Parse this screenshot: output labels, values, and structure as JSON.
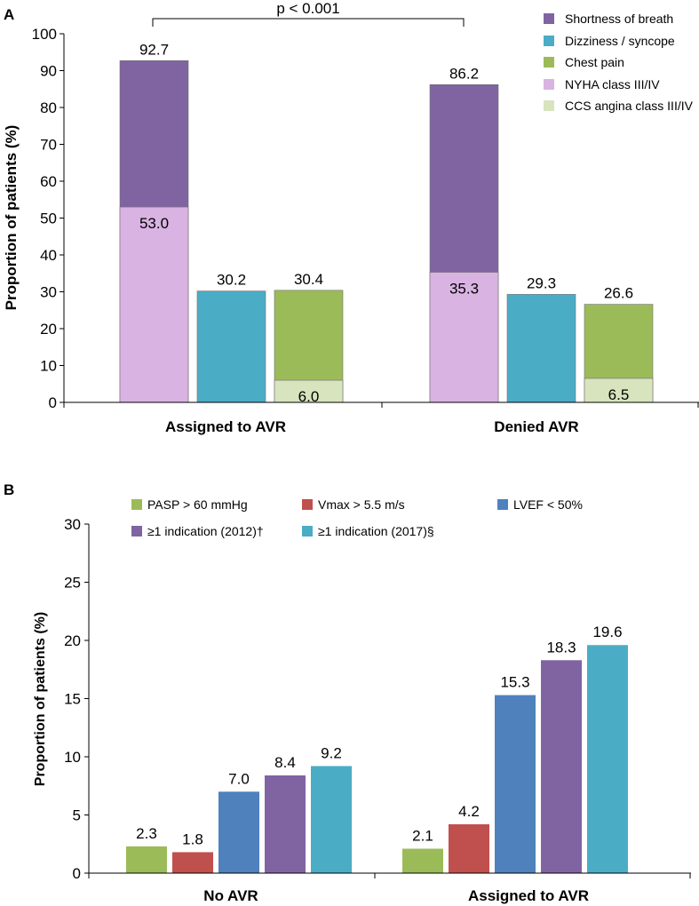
{
  "chart_data": [
    {
      "panel_label": "A",
      "type": "bar",
      "stacked": true,
      "ylabel": "Proportion of patients (%)",
      "ylim": [
        0,
        100
      ],
      "yticks": [
        0,
        10,
        20,
        30,
        40,
        50,
        60,
        70,
        80,
        90,
        100
      ],
      "categories": [
        "Assigned to AVR",
        "Denied AVR"
      ],
      "annotation": "p < 0.001",
      "legend_position": "top-right",
      "legend": [
        {
          "label": "Shortness of breath",
          "color": "#8064A2"
        },
        {
          "label": "Dizziness / syncope",
          "color": "#4BACC6"
        },
        {
          "label": "Chest pain",
          "color": "#9BBB59"
        },
        {
          "label": "NYHA class III/IV",
          "color": "#D9B3E2"
        },
        {
          "label": "CCS angina class III/IV",
          "color": "#D7E4BD"
        }
      ],
      "groups": [
        {
          "category": "Assigned to AVR",
          "bars": [
            {
              "total": 92.7,
              "total_label": "92.7",
              "color": "#8064A2",
              "sub": 53.0,
              "sub_label": "53.0",
              "sub_color": "#D9B3E2"
            },
            {
              "total": 30.2,
              "total_label": "30.2",
              "color": "#4BACC6"
            },
            {
              "total": 30.4,
              "total_label": "30.4",
              "color": "#9BBB59",
              "sub": 6.0,
              "sub_label": "6.0",
              "sub_color": "#D7E4BD"
            }
          ]
        },
        {
          "category": "Denied AVR",
          "bars": [
            {
              "total": 86.2,
              "total_label": "86.2",
              "color": "#8064A2",
              "sub": 35.3,
              "sub_label": "35.3",
              "sub_color": "#D9B3E2"
            },
            {
              "total": 29.3,
              "total_label": "29.3",
              "color": "#4BACC6"
            },
            {
              "total": 26.6,
              "total_label": "26.6",
              "color": "#9BBB59",
              "sub": 6.5,
              "sub_label": "6.5",
              "sub_color": "#D7E4BD"
            }
          ]
        }
      ]
    },
    {
      "panel_label": "B",
      "type": "bar",
      "ylabel": "Proportion of patients (%)",
      "ylim": [
        0,
        30
      ],
      "yticks": [
        0,
        5,
        10,
        15,
        20,
        25,
        30
      ],
      "categories": [
        "No AVR",
        "Assigned to AVR"
      ],
      "legend_position": "top",
      "series": [
        {
          "name": "PASP > 60 mmHg",
          "color": "#9BBB59",
          "values": [
            2.3,
            2.1
          ],
          "labels": [
            "2.3",
            "2.1"
          ]
        },
        {
          "name": "Vmax > 5.5 m/s",
          "color": "#C0504D",
          "values": [
            1.8,
            4.2
          ],
          "labels": [
            "1.8",
            "4.2"
          ]
        },
        {
          "name": "LVEF < 50%",
          "color": "#4F81BD",
          "values": [
            7.0,
            15.3
          ],
          "labels": [
            "7.0",
            "15.3"
          ]
        },
        {
          "name": "≥1 indication (2012)†",
          "color": "#8064A2",
          "values": [
            8.4,
            18.3
          ],
          "labels": [
            "8.4",
            "18.3"
          ]
        },
        {
          "name": "≥1 indication (2017)§",
          "color": "#4BACC6",
          "values": [
            9.2,
            19.6
          ],
          "labels": [
            "9.2",
            "19.6"
          ]
        }
      ]
    }
  ]
}
